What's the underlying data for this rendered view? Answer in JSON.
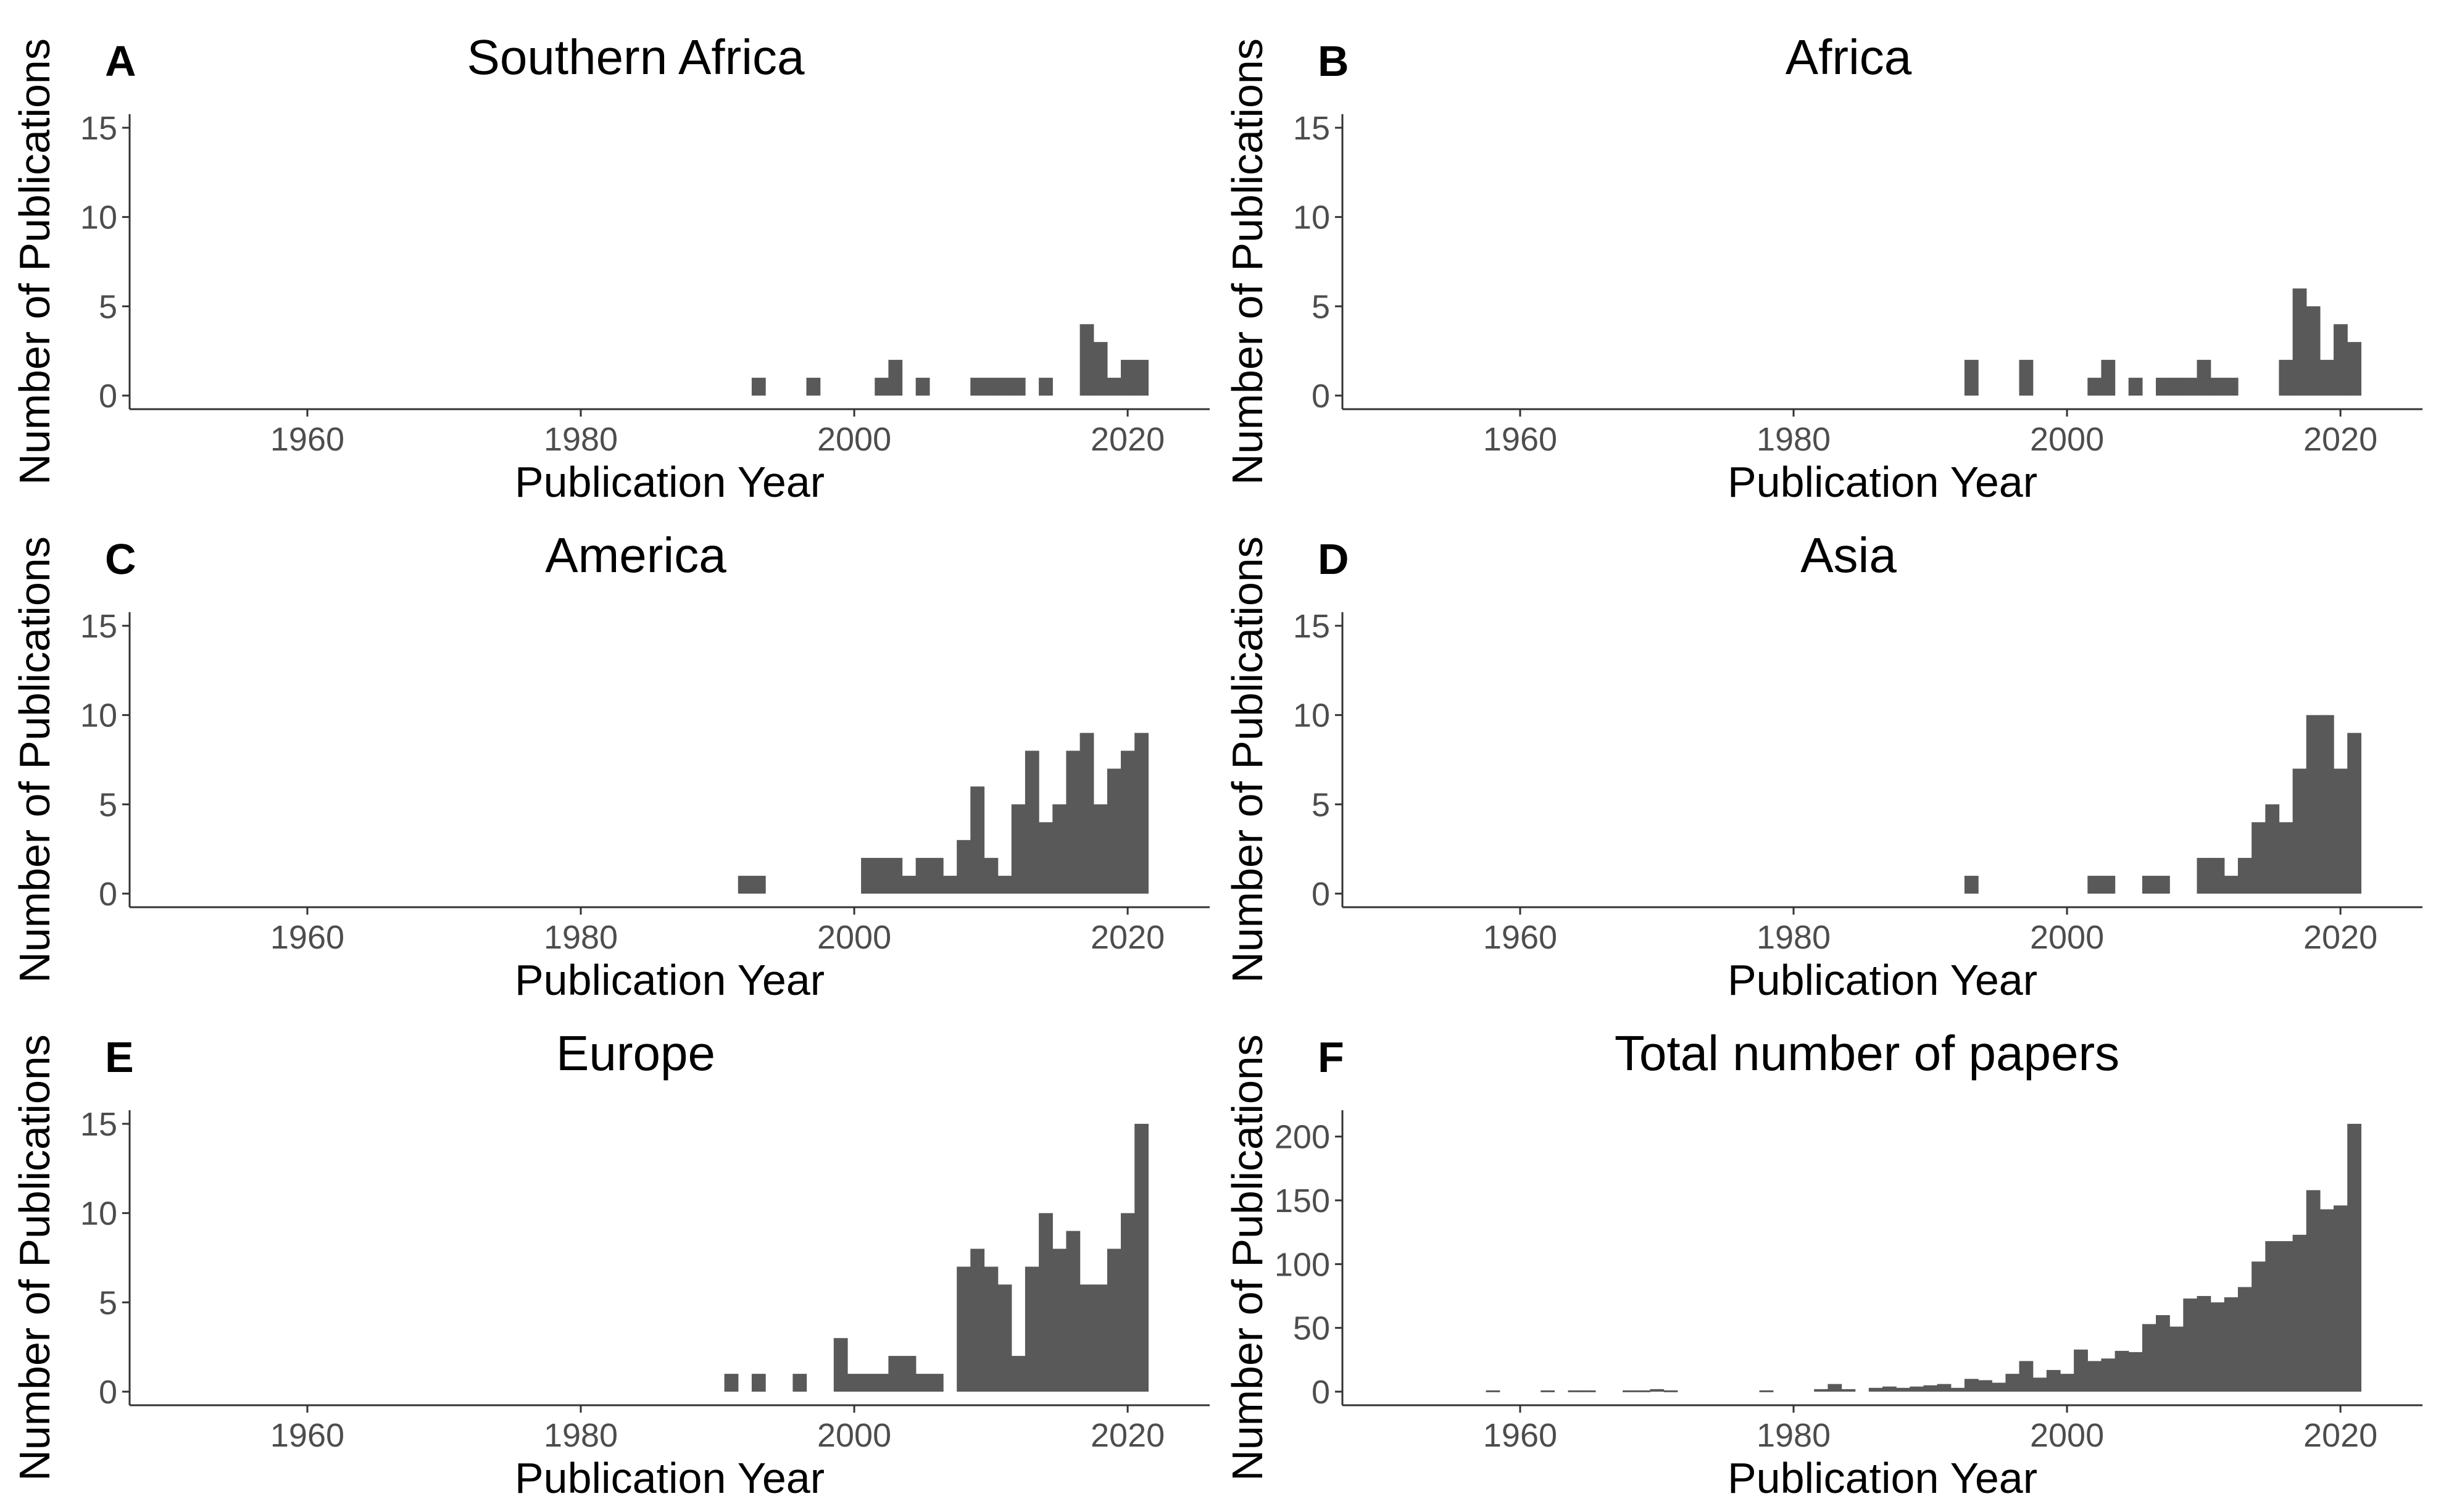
{
  "colors": {
    "bar": "#595959",
    "axis": "#333333",
    "tick_text": "#4d4d4d",
    "text": "#000000",
    "background": "#ffffff"
  },
  "chart_data": [
    {
      "type": "bar",
      "panel": "A",
      "title": "Southern Africa",
      "xlabel": "Publication Year",
      "ylabel": "Number of Publications",
      "xlim": [
        1947,
        2026
      ],
      "ylim": [
        0,
        15
      ],
      "xticks": [
        1960,
        1980,
        2000,
        2020
      ],
      "yticks": [
        0,
        5,
        10,
        15
      ],
      "x": [
        1993,
        1997,
        2002,
        2003,
        2005,
        2009,
        2010,
        2011,
        2012,
        2014,
        2017,
        2018,
        2019,
        2020,
        2021
      ],
      "values": [
        1,
        1,
        1,
        2,
        1,
        1,
        1,
        1,
        1,
        1,
        4,
        3,
        1,
        2,
        2
      ]
    },
    {
      "type": "bar",
      "panel": "B",
      "title": "Africa",
      "xlabel": "Publication Year",
      "ylabel": "Number of Publications",
      "xlim": [
        1947,
        2026
      ],
      "ylim": [
        0,
        15
      ],
      "xticks": [
        1960,
        1980,
        2000,
        2020
      ],
      "yticks": [
        0,
        5,
        10,
        15
      ],
      "x": [
        1993,
        1997,
        2002,
        2003,
        2005,
        2007,
        2008,
        2009,
        2010,
        2011,
        2012,
        2016,
        2017,
        2018,
        2019,
        2020,
        2021
      ],
      "values": [
        2,
        2,
        1,
        2,
        1,
        1,
        1,
        1,
        2,
        1,
        1,
        2,
        6,
        5,
        2,
        4,
        3
      ]
    },
    {
      "type": "bar",
      "panel": "C",
      "title": "America",
      "xlabel": "Publication Year",
      "ylabel": "Number of Publications",
      "xlim": [
        1947,
        2026
      ],
      "ylim": [
        0,
        15
      ],
      "xticks": [
        1960,
        1980,
        2000,
        2020
      ],
      "yticks": [
        0,
        5,
        10,
        15
      ],
      "x": [
        1992,
        1993,
        2001,
        2002,
        2003,
        2004,
        2005,
        2006,
        2007,
        2008,
        2009,
        2010,
        2011,
        2012,
        2013,
        2014,
        2015,
        2016,
        2017,
        2018,
        2019,
        2020,
        2021
      ],
      "values": [
        1,
        1,
        2,
        2,
        2,
        1,
        2,
        2,
        1,
        3,
        6,
        2,
        1,
        5,
        8,
        4,
        5,
        8,
        9,
        5,
        7,
        8,
        9
      ]
    },
    {
      "type": "bar",
      "panel": "D",
      "title": "Asia",
      "xlabel": "Publication Year",
      "ylabel": "Number of Publications",
      "xlim": [
        1947,
        2026
      ],
      "ylim": [
        0,
        15
      ],
      "xticks": [
        1960,
        1980,
        2000,
        2020
      ],
      "yticks": [
        0,
        5,
        10,
        15
      ],
      "x": [
        1993,
        2002,
        2003,
        2006,
        2007,
        2010,
        2011,
        2012,
        2013,
        2014,
        2015,
        2016,
        2017,
        2018,
        2019,
        2020,
        2021
      ],
      "values": [
        1,
        1,
        1,
        1,
        1,
        2,
        2,
        1,
        2,
        4,
        5,
        4,
        7,
        10,
        10,
        7,
        9
      ]
    },
    {
      "type": "bar",
      "panel": "E",
      "title": "Europe",
      "xlabel": "Publication Year",
      "ylabel": "Number of Publications",
      "xlim": [
        1947,
        2026
      ],
      "ylim": [
        0,
        15
      ],
      "xticks": [
        1960,
        1980,
        2000,
        2020
      ],
      "yticks": [
        0,
        5,
        10,
        15
      ],
      "x": [
        1991,
        1993,
        1996,
        1999,
        2000,
        2001,
        2002,
        2003,
        2004,
        2005,
        2006,
        2008,
        2009,
        2010,
        2011,
        2012,
        2013,
        2014,
        2015,
        2016,
        2017,
        2018,
        2019,
        2020,
        2021
      ],
      "values": [
        1,
        1,
        1,
        3,
        1,
        1,
        1,
        2,
        2,
        1,
        1,
        7,
        8,
        7,
        6,
        2,
        7,
        10,
        8,
        9,
        6,
        6,
        8,
        10,
        15
      ]
    },
    {
      "type": "bar",
      "panel": "F",
      "title": "Total number of papers",
      "xlabel": "Publication Year",
      "ylabel": "Number of Publications",
      "xlim": [
        1947,
        2026
      ],
      "ylim": [
        0,
        210
      ],
      "xticks": [
        1960,
        1980,
        2000,
        2020
      ],
      "yticks": [
        0,
        50,
        100,
        150,
        200
      ],
      "x": [
        1958,
        1962,
        1964,
        1965,
        1968,
        1969,
        1970,
        1971,
        1978,
        1982,
        1983,
        1984,
        1986,
        1987,
        1988,
        1989,
        1990,
        1991,
        1992,
        1993,
        1994,
        1995,
        1996,
        1997,
        1998,
        1999,
        2000,
        2001,
        2002,
        2003,
        2004,
        2005,
        2006,
        2007,
        2008,
        2009,
        2010,
        2011,
        2012,
        2013,
        2014,
        2015,
        2016,
        2017,
        2018,
        2019,
        2020,
        2021
      ],
      "values": [
        1,
        1,
        1,
        1,
        1,
        1,
        2,
        1,
        1,
        2,
        6,
        2,
        3,
        4,
        3,
        4,
        5,
        6,
        3,
        10,
        9,
        7,
        14,
        24,
        11,
        17,
        14,
        33,
        24,
        26,
        32,
        31,
        53,
        60,
        51,
        73,
        75,
        70,
        74,
        82,
        102,
        118,
        118,
        123,
        158,
        143,
        146,
        210
      ]
    }
  ]
}
